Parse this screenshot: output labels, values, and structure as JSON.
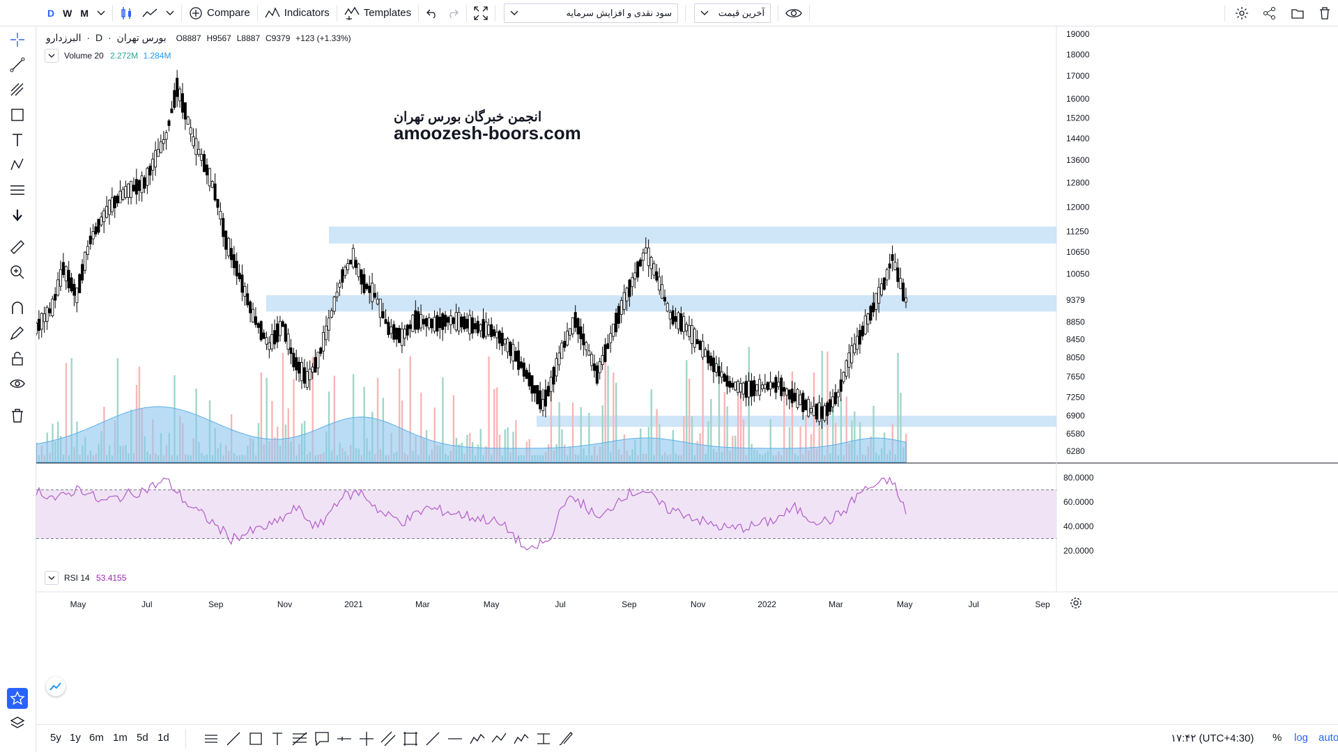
{
  "toolbar": {
    "timeframes": [
      "D",
      "W",
      "M"
    ],
    "compare_label": "Compare",
    "indicators_label": "Indicators",
    "templates_label": "Templates",
    "indicator_select": "سود نقدی و افزایش سرمایه",
    "price_select": "آخرین قیمت"
  },
  "legend": {
    "symbol_name": "البرزدارو",
    "interval": "D",
    "exchange": "بورس تهران",
    "open": "O8887",
    "high": "H9567",
    "low": "L8887",
    "close": "C9379",
    "change": "+123 (+1.33%)",
    "volume_title": "Volume 20",
    "volume_value": "2.272M",
    "volume_ma": "1.284M",
    "rsi_title": "RSI 14",
    "rsi_value": "53.4155"
  },
  "watermark": {
    "line1": "انجمن خبرگان بورس تهران",
    "line2": "amoozesh-boors.com"
  },
  "bottom": {
    "ranges": [
      "5y",
      "1y",
      "6m",
      "1m",
      "5d",
      "1d"
    ],
    "clock": "۱۷:۴۲ (UTC+4:30)",
    "percent": "%",
    "log": "log",
    "auto": "auto"
  },
  "colors": {
    "accent": "#2962ff",
    "zone": "#cfe5f8",
    "rsi_line": "#b05cc9",
    "rsi_band": "#f0e3f5",
    "volume_ma_fill": "#8cc6ee",
    "volume_up": "#f8b6b6",
    "volume_down": "#9fd6c8"
  },
  "chart_data": {
    "type": "candlestick",
    "symbol": "البرزدارو",
    "price_axis": {
      "ticks": [
        6280,
        6580,
        6900,
        7250,
        7650,
        8050,
        8450,
        8850,
        9379,
        10050,
        10650,
        11250,
        12000,
        12800,
        13600,
        14400,
        15200,
        16000,
        17000,
        18000,
        19000
      ],
      "scale": "log",
      "last_price": 9379
    },
    "time_axis": {
      "labels": [
        "May",
        "Jul",
        "Sep",
        "Nov",
        "2021",
        "Mar",
        "May",
        "Jul",
        "Sep",
        "Nov",
        "2022",
        "Mar",
        "May",
        "Jul",
        "Sep"
      ]
    },
    "zones": [
      {
        "from": 10900,
        "to": 11400
      },
      {
        "from": 9100,
        "to": 9500
      },
      {
        "from": 6700,
        "to": 6900
      }
    ],
    "price_series": [
      {
        "t": 0,
        "v": 8700
      },
      {
        "t": 6,
        "v": 9200
      },
      {
        "t": 10,
        "v": 10200
      },
      {
        "t": 15,
        "v": 9500
      },
      {
        "t": 20,
        "v": 11000
      },
      {
        "t": 27,
        "v": 12000
      },
      {
        "t": 33,
        "v": 12500
      },
      {
        "t": 40,
        "v": 12800
      },
      {
        "t": 48,
        "v": 14500
      },
      {
        "t": 52,
        "v": 16500
      },
      {
        "t": 55,
        "v": 15500
      },
      {
        "t": 58,
        "v": 14300
      },
      {
        "t": 62,
        "v": 13500
      },
      {
        "t": 66,
        "v": 12500
      },
      {
        "t": 70,
        "v": 11000
      },
      {
        "t": 75,
        "v": 10000
      },
      {
        "t": 80,
        "v": 9000
      },
      {
        "t": 86,
        "v": 8300
      },
      {
        "t": 91,
        "v": 8800
      },
      {
        "t": 95,
        "v": 8000
      },
      {
        "t": 100,
        "v": 7600
      },
      {
        "t": 104,
        "v": 8000
      },
      {
        "t": 108,
        "v": 8800
      },
      {
        "t": 113,
        "v": 10000
      },
      {
        "t": 117,
        "v": 10500
      },
      {
        "t": 121,
        "v": 9800
      },
      {
        "t": 125,
        "v": 9500
      },
      {
        "t": 130,
        "v": 8700
      },
      {
        "t": 135,
        "v": 8500
      },
      {
        "t": 140,
        "v": 8900
      },
      {
        "t": 147,
        "v": 8800
      },
      {
        "t": 152,
        "v": 8900
      },
      {
        "t": 157,
        "v": 8850
      },
      {
        "t": 162,
        "v": 8750
      },
      {
        "t": 168,
        "v": 8650
      },
      {
        "t": 173,
        "v": 8400
      },
      {
        "t": 178,
        "v": 8000
      },
      {
        "t": 183,
        "v": 7500
      },
      {
        "t": 187,
        "v": 7100
      },
      {
        "t": 190,
        "v": 7500
      },
      {
        "t": 194,
        "v": 8200
      },
      {
        "t": 199,
        "v": 8900
      },
      {
        "t": 203,
        "v": 8300
      },
      {
        "t": 207,
        "v": 7700
      },
      {
        "t": 211,
        "v": 8300
      },
      {
        "t": 216,
        "v": 9200
      },
      {
        "t": 221,
        "v": 10000
      },
      {
        "t": 225,
        "v": 10700
      },
      {
        "t": 229,
        "v": 10000
      },
      {
        "t": 234,
        "v": 9000
      },
      {
        "t": 239,
        "v": 8800
      },
      {
        "t": 244,
        "v": 8400
      },
      {
        "t": 250,
        "v": 7900
      },
      {
        "t": 256,
        "v": 7500
      },
      {
        "t": 262,
        "v": 7400
      },
      {
        "t": 268,
        "v": 7450
      },
      {
        "t": 274,
        "v": 7500
      },
      {
        "t": 278,
        "v": 7300
      },
      {
        "t": 282,
        "v": 7200
      },
      {
        "t": 286,
        "v": 7000
      },
      {
        "t": 291,
        "v": 6950
      },
      {
        "t": 296,
        "v": 7300
      },
      {
        "t": 300,
        "v": 8000
      },
      {
        "t": 304,
        "v": 8500
      },
      {
        "t": 309,
        "v": 9200
      },
      {
        "t": 313,
        "v": 9800
      },
      {
        "t": 316,
        "v": 10500
      },
      {
        "t": 319,
        "v": 9800
      },
      {
        "t": 321,
        "v": 9379
      }
    ],
    "rsi": {
      "period": 14,
      "value": 53.4155,
      "ticks": [
        20,
        40,
        60,
        80
      ],
      "band": [
        30,
        70
      ],
      "series": [
        {
          "t": 0,
          "v": 70
        },
        {
          "t": 8,
          "v": 62
        },
        {
          "t": 16,
          "v": 72
        },
        {
          "t": 24,
          "v": 60
        },
        {
          "t": 32,
          "v": 65
        },
        {
          "t": 40,
          "v": 70
        },
        {
          "t": 48,
          "v": 78
        },
        {
          "t": 56,
          "v": 58
        },
        {
          "t": 64,
          "v": 45
        },
        {
          "t": 72,
          "v": 30
        },
        {
          "t": 80,
          "v": 36
        },
        {
          "t": 88,
          "v": 42
        },
        {
          "t": 96,
          "v": 55
        },
        {
          "t": 104,
          "v": 38
        },
        {
          "t": 112,
          "v": 64
        },
        {
          "t": 120,
          "v": 68
        },
        {
          "t": 128,
          "v": 50
        },
        {
          "t": 136,
          "v": 44
        },
        {
          "t": 144,
          "v": 55
        },
        {
          "t": 152,
          "v": 52
        },
        {
          "t": 160,
          "v": 48
        },
        {
          "t": 168,
          "v": 45
        },
        {
          "t": 174,
          "v": 38
        },
        {
          "t": 178,
          "v": 28
        },
        {
          "t": 182,
          "v": 18
        },
        {
          "t": 186,
          "v": 26
        },
        {
          "t": 190,
          "v": 28
        },
        {
          "t": 194,
          "v": 60
        },
        {
          "t": 200,
          "v": 62
        },
        {
          "t": 208,
          "v": 45
        },
        {
          "t": 216,
          "v": 65
        },
        {
          "t": 224,
          "v": 70
        },
        {
          "t": 232,
          "v": 55
        },
        {
          "t": 240,
          "v": 50
        },
        {
          "t": 248,
          "v": 42
        },
        {
          "t": 256,
          "v": 38
        },
        {
          "t": 264,
          "v": 40
        },
        {
          "t": 272,
          "v": 45
        },
        {
          "t": 280,
          "v": 55
        },
        {
          "t": 286,
          "v": 46
        },
        {
          "t": 292,
          "v": 44
        },
        {
          "t": 298,
          "v": 52
        },
        {
          "t": 304,
          "v": 68
        },
        {
          "t": 310,
          "v": 74
        },
        {
          "t": 316,
          "v": 78
        },
        {
          "t": 319,
          "v": 60
        },
        {
          "t": 321,
          "v": 53
        }
      ]
    },
    "volume": {
      "title": "Volume 20",
      "last": "2.272M",
      "ma": "1.284M"
    }
  }
}
